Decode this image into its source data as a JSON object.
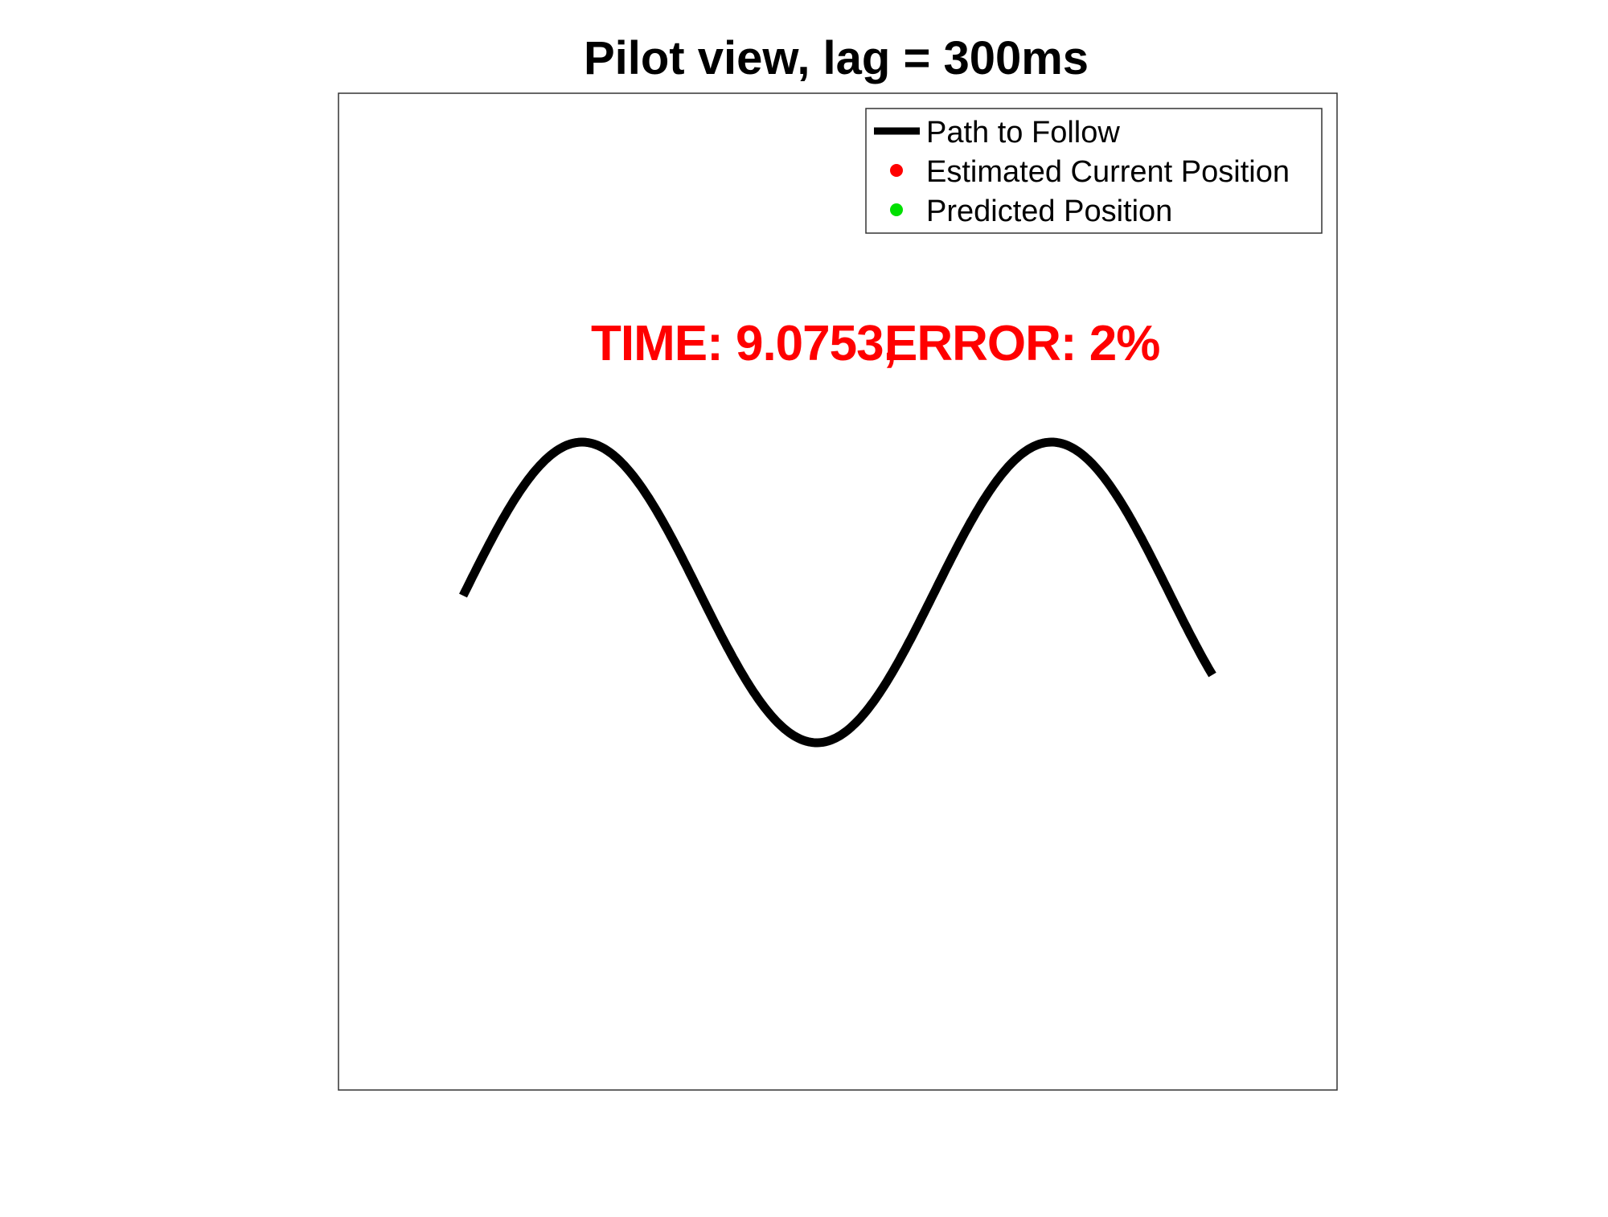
{
  "chart_data": {
    "type": "line",
    "title": "Pilot view, lag = 300ms",
    "xlabel": "",
    "ylabel": "",
    "axes_visible": false,
    "grid": false,
    "legend_position": "top-right",
    "status": {
      "time_label": "TIME: 9.0753,",
      "error_label": "ERROR: 2%"
    },
    "series": [
      {
        "name": "Path to Follow",
        "color": "#000000",
        "style": "thick-line",
        "x_start": 0,
        "x_end": 3.18,
        "amplitude": 1,
        "cycles_description": "sine wave"
      },
      {
        "name": "Estimated Current Position",
        "color": "#ff0000",
        "style": "marker",
        "points": []
      },
      {
        "name": "Predicted Position",
        "color": "#00e000",
        "style": "marker",
        "points": []
      }
    ]
  }
}
